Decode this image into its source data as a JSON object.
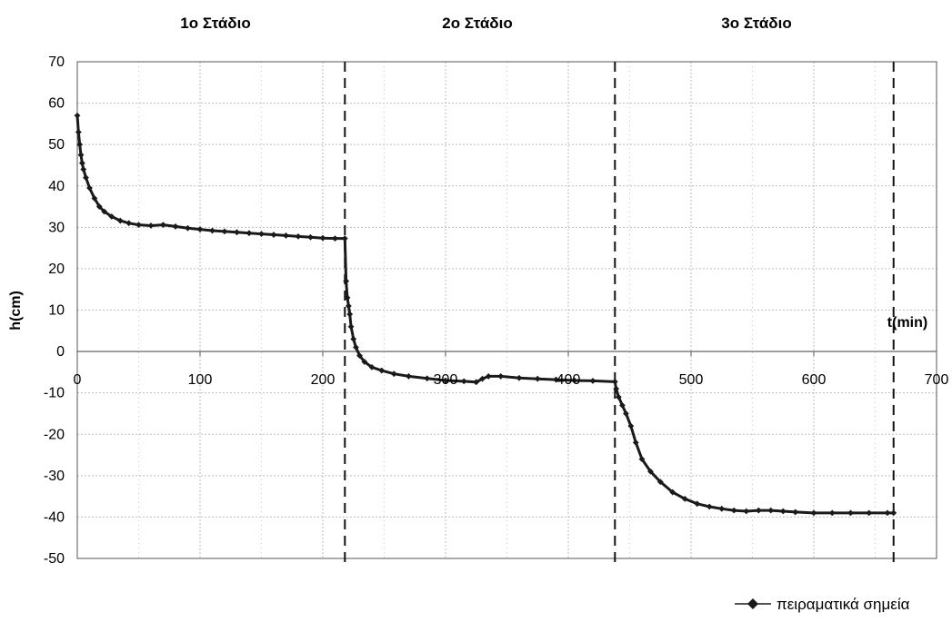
{
  "chart_data": {
    "type": "scatter",
    "stage_titles": [
      "1ο Στάδιο",
      "2ο Στάδιο",
      "3ο Στάδιο"
    ],
    "xlabel": "t(min)",
    "ylabel": "h(cm)",
    "xlim": [
      0,
      700
    ],
    "ylim": [
      -50,
      70
    ],
    "x_ticks": [
      0,
      100,
      200,
      300,
      400,
      500,
      600,
      700
    ],
    "x_tick_labels": [
      "0",
      "100",
      "200",
      "300",
      "400",
      "500",
      "600",
      "700"
    ],
    "y_ticks": [
      70,
      60,
      50,
      40,
      30,
      20,
      10,
      0,
      -10,
      -20,
      -30,
      -40,
      -50
    ],
    "y_tick_labels": [
      "70",
      "60",
      "50",
      "40",
      "30",
      "20",
      "10",
      "0",
      "-10",
      "-20",
      "-30",
      "-40",
      "-50"
    ],
    "stage_boundaries": [
      218,
      438,
      665
    ],
    "grid": true,
    "legend_position": "bottom-right",
    "colors": {
      "series": "#1a1a1a",
      "grid": "#bdbdbd",
      "axis": "#555555"
    },
    "series": [
      {
        "name": "πειραματικά σημεία",
        "marker": "diamond",
        "points": [
          [
            0,
            57
          ],
          [
            1,
            53
          ],
          [
            2,
            50
          ],
          [
            3,
            47.5
          ],
          [
            4,
            45.5
          ],
          [
            5,
            44
          ],
          [
            7,
            42
          ],
          [
            10,
            39.5
          ],
          [
            14,
            37
          ],
          [
            18,
            35
          ],
          [
            22,
            33.8
          ],
          [
            28,
            32.6
          ],
          [
            35,
            31.6
          ],
          [
            42,
            31
          ],
          [
            50,
            30.6
          ],
          [
            60,
            30.4
          ],
          [
            70,
            30.6
          ],
          [
            80,
            30.2
          ],
          [
            90,
            29.8
          ],
          [
            100,
            29.5
          ],
          [
            110,
            29.2
          ],
          [
            120,
            29
          ],
          [
            130,
            28.8
          ],
          [
            140,
            28.6
          ],
          [
            150,
            28.4
          ],
          [
            160,
            28.2
          ],
          [
            170,
            28
          ],
          [
            180,
            27.8
          ],
          [
            190,
            27.6
          ],
          [
            200,
            27.4
          ],
          [
            210,
            27.3
          ],
          [
            218,
            27.3
          ],
          [
            219,
            17
          ],
          [
            220,
            13
          ],
          [
            221,
            11
          ],
          [
            222,
            9
          ],
          [
            223,
            6
          ],
          [
            225,
            3
          ],
          [
            227,
            1
          ],
          [
            230,
            -1
          ],
          [
            234,
            -2.5
          ],
          [
            240,
            -3.8
          ],
          [
            248,
            -4.6
          ],
          [
            258,
            -5.4
          ],
          [
            270,
            -6
          ],
          [
            285,
            -6.5
          ],
          [
            300,
            -7
          ],
          [
            315,
            -7.2
          ],
          [
            325,
            -7.4
          ],
          [
            330,
            -6.6
          ],
          [
            335,
            -6
          ],
          [
            345,
            -6
          ],
          [
            360,
            -6.4
          ],
          [
            375,
            -6.6
          ],
          [
            390,
            -6.8
          ],
          [
            405,
            -7
          ],
          [
            420,
            -7.1
          ],
          [
            438,
            -7.3
          ],
          [
            439,
            -9
          ],
          [
            441,
            -11
          ],
          [
            444,
            -13
          ],
          [
            447,
            -15
          ],
          [
            451,
            -18
          ],
          [
            455,
            -22
          ],
          [
            460,
            -26
          ],
          [
            467,
            -29
          ],
          [
            475,
            -31.5
          ],
          [
            485,
            -34
          ],
          [
            495,
            -35.6
          ],
          [
            505,
            -36.8
          ],
          [
            515,
            -37.5
          ],
          [
            525,
            -38
          ],
          [
            535,
            -38.4
          ],
          [
            545,
            -38.6
          ],
          [
            555,
            -38.4
          ],
          [
            565,
            -38.4
          ],
          [
            575,
            -38.6
          ],
          [
            585,
            -38.8
          ],
          [
            600,
            -39
          ],
          [
            615,
            -39
          ],
          [
            630,
            -39
          ],
          [
            645,
            -39
          ],
          [
            660,
            -39
          ],
          [
            665,
            -39
          ]
        ]
      }
    ]
  }
}
